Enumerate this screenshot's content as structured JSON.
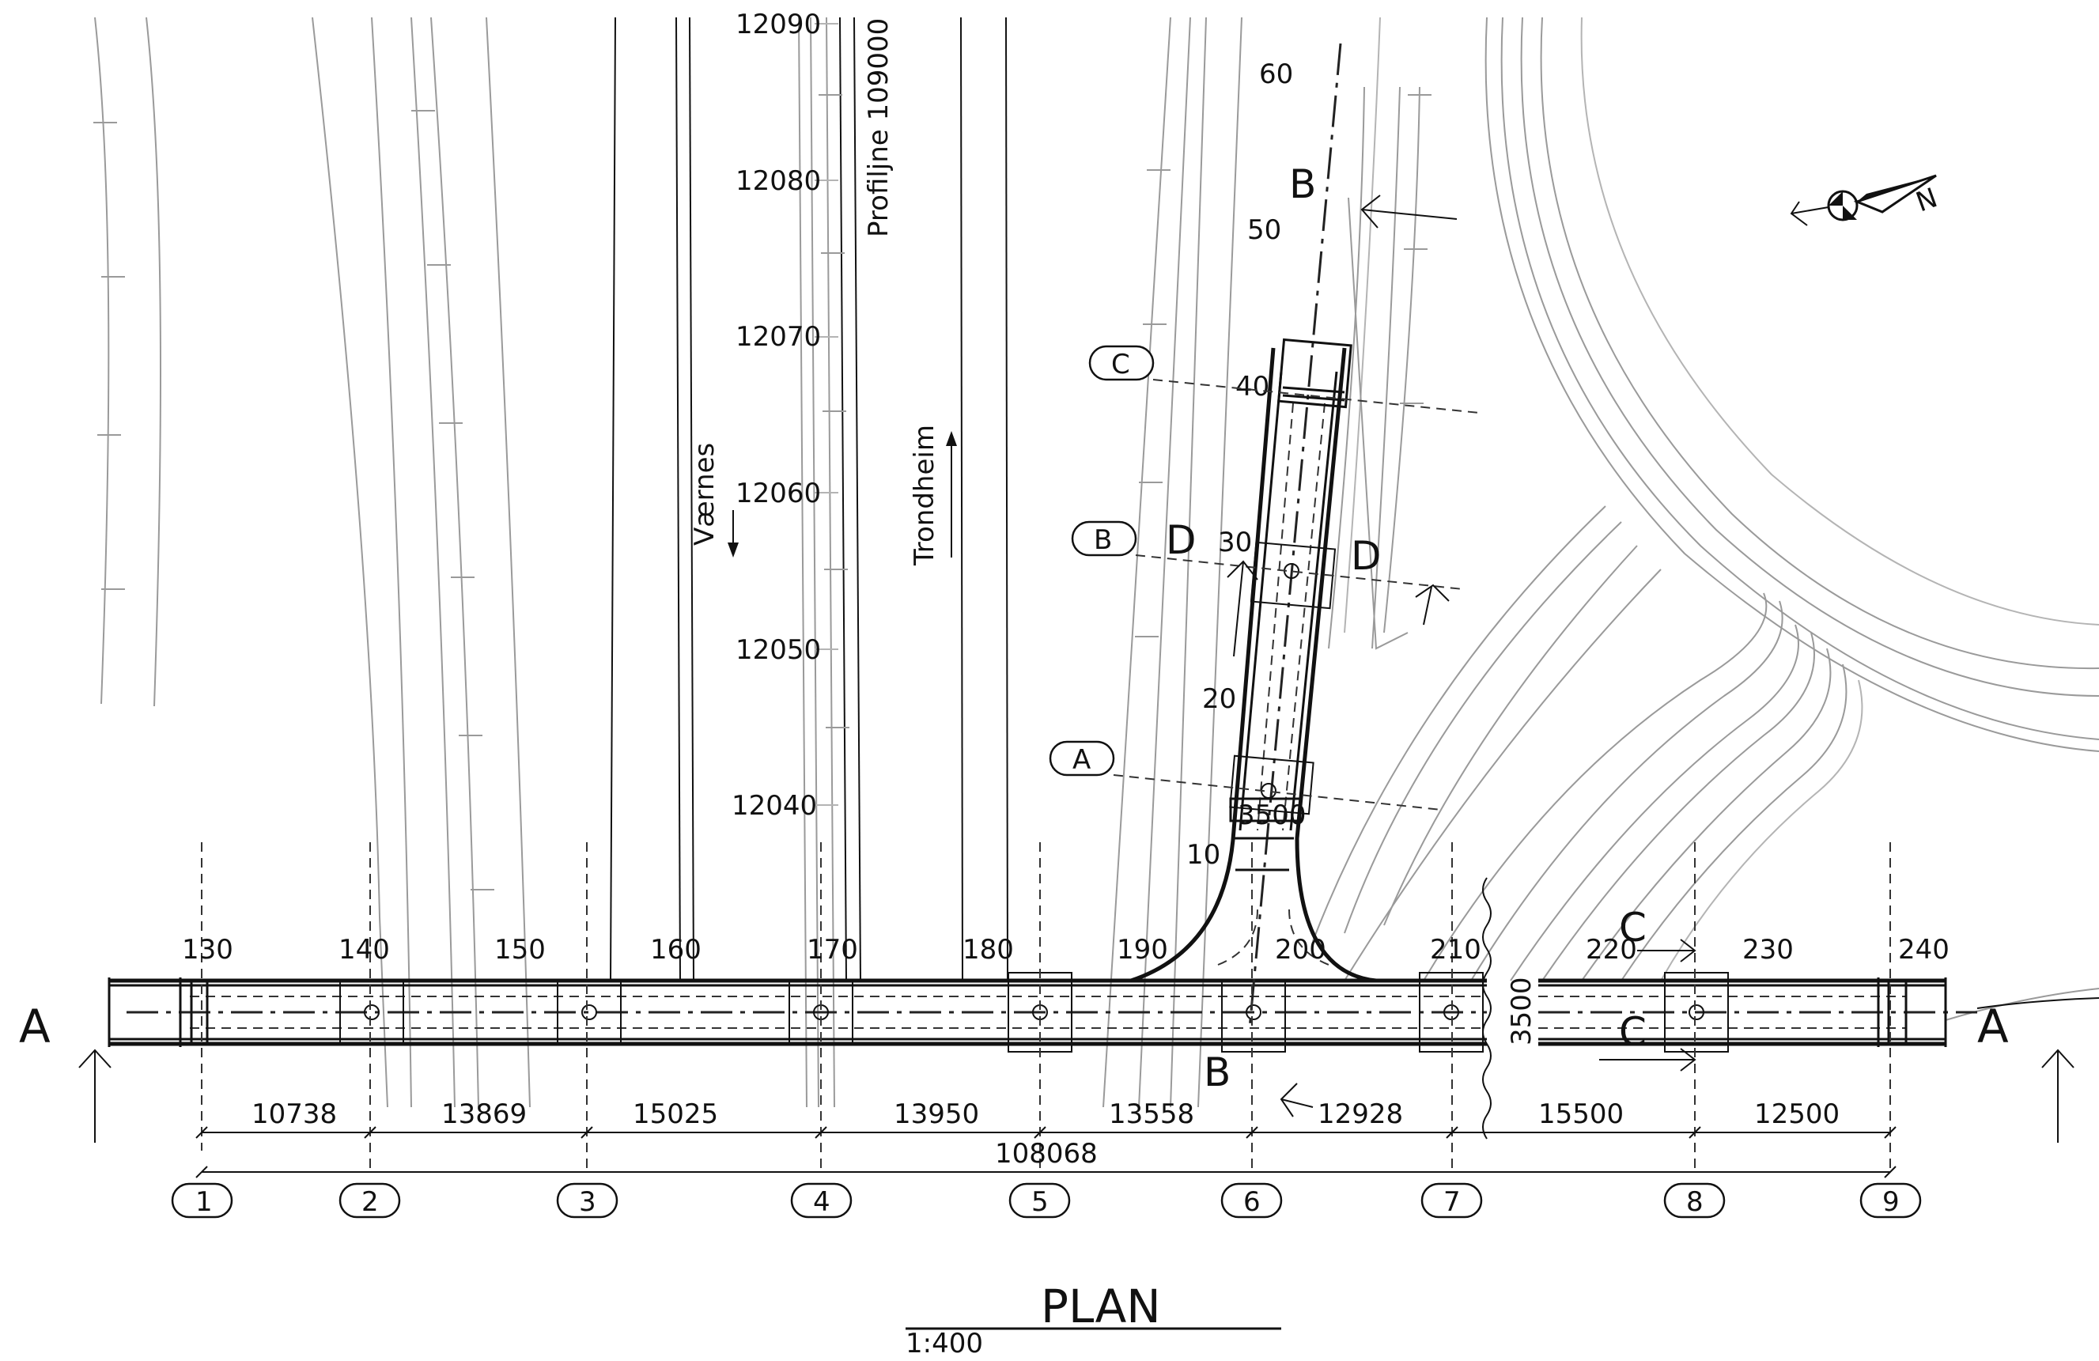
{
  "title": "PLAN",
  "scale": "1:400",
  "road_labels": {
    "profile_line": "Profiljne 109000",
    "direction_left": "Værnes",
    "direction_right": "Trondheim"
  },
  "ordinates": [
    "12090",
    "12080",
    "12070",
    "12060",
    "12050",
    "12040"
  ],
  "chainage_main": [
    "130",
    "140",
    "150",
    "160",
    "170",
    "180",
    "190",
    "200",
    "210",
    "220",
    "230",
    "240"
  ],
  "chainage_branch": [
    "60",
    "50",
    "40",
    "30",
    "20",
    "10"
  ],
  "span_dimensions": [
    "10738",
    "13869",
    "15025",
    "13950",
    "13558",
    "12928",
    "15500",
    "12500"
  ],
  "total_dimension": "108068",
  "axis_labels": [
    "1",
    "2",
    "3",
    "4",
    "5",
    "6",
    "7",
    "8",
    "9"
  ],
  "section_markers": {
    "a_left": "A",
    "a_right": "A",
    "b_top": "B",
    "b_bottom": "B",
    "c_top": "C",
    "c_bottom": "C",
    "d_left": "D",
    "d_right": "D"
  },
  "section_callouts": [
    "C",
    "B",
    "A"
  ],
  "width_dims": {
    "branch_width": "3500",
    "main_width": "3500"
  },
  "north_label": "N",
  "colors": {
    "ink": "#111111",
    "background_lines": "#9a9a9a",
    "paper": "#ffffff"
  }
}
